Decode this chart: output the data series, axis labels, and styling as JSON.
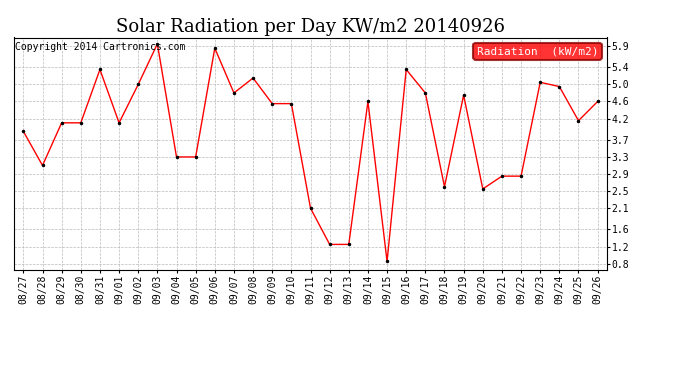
{
  "title": "Solar Radiation per Day KW/m2 20140926",
  "copyright_text": "Copyright 2014 Cartronics.com",
  "legend_label": "Radiation  (kW/m2)",
  "dates": [
    "08/27",
    "08/28",
    "08/29",
    "08/30",
    "08/31",
    "09/01",
    "09/02",
    "09/03",
    "09/04",
    "09/05",
    "09/06",
    "09/07",
    "09/08",
    "09/09",
    "09/10",
    "09/11",
    "09/12",
    "09/13",
    "09/14",
    "09/15",
    "09/16",
    "09/17",
    "09/18",
    "09/19",
    "09/20",
    "09/21",
    "09/22",
    "09/23",
    "09/24",
    "09/25",
    "09/26"
  ],
  "values": [
    3.9,
    3.1,
    4.1,
    4.1,
    5.35,
    4.1,
    5.0,
    5.95,
    3.3,
    3.3,
    5.85,
    4.8,
    5.15,
    4.55,
    4.55,
    2.1,
    1.25,
    1.25,
    4.6,
    0.85,
    5.35,
    4.8,
    2.6,
    4.75,
    2.55,
    2.85,
    2.85,
    5.05,
    4.95,
    4.15,
    4.6
  ],
  "line_color": "red",
  "marker_color": "black",
  "background_color": "#ffffff",
  "grid_color": "#bbbbbb",
  "ylim": [
    0.65,
    6.1
  ],
  "yticks": [
    0.8,
    1.2,
    1.6,
    2.1,
    2.5,
    2.9,
    3.3,
    3.7,
    4.2,
    4.6,
    5.0,
    5.4,
    5.9
  ],
  "title_fontsize": 13,
  "copyright_fontsize": 7,
  "legend_fontsize": 8,
  "tick_fontsize": 7
}
